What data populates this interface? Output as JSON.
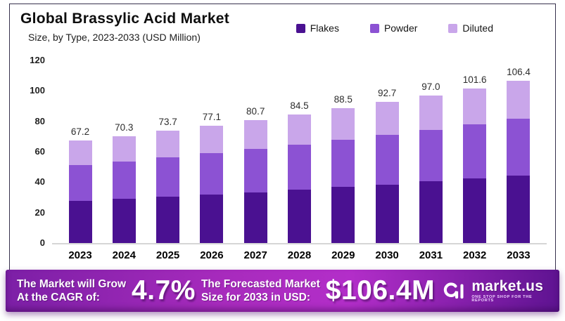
{
  "page": {
    "title": "Global Brassylic Acid Market",
    "subtitle": "Size, by Type, 2023-2033 (USD Million)"
  },
  "legend": [
    {
      "label": "Flakes",
      "color": "#4a1191"
    },
    {
      "label": "Powder",
      "color": "#8c52d3"
    },
    {
      "label": "Diluted",
      "color": "#c9a6ea"
    }
  ],
  "chart_data": {
    "type": "bar",
    "stacked": true,
    "title": "Global Brassylic Acid Market",
    "subtitle": "Size, by Type, 2023-2033 (USD Million)",
    "xlabel": "",
    "ylabel": "",
    "ylim": [
      0,
      120
    ],
    "yticks": [
      0,
      20,
      40,
      60,
      80,
      100,
      120
    ],
    "grid": false,
    "legend_position": "top-right",
    "categories": [
      "2023",
      "2024",
      "2025",
      "2026",
      "2027",
      "2028",
      "2029",
      "2030",
      "2031",
      "2032",
      "2033"
    ],
    "series": [
      {
        "name": "Flakes",
        "color": "#4a1191",
        "values": [
          27.5,
          28.9,
          30.3,
          31.8,
          33.4,
          35.0,
          36.7,
          38.5,
          40.4,
          42.4,
          44.5
        ]
      },
      {
        "name": "Powder",
        "color": "#8c52d3",
        "values": [
          23.6,
          24.7,
          25.9,
          27.1,
          28.4,
          29.7,
          31.1,
          32.6,
          34.1,
          35.7,
          37.4
        ]
      },
      {
        "name": "Diluted",
        "color": "#c9a6ea",
        "values": [
          16.1,
          16.7,
          17.5,
          18.2,
          18.9,
          19.8,
          20.7,
          21.6,
          22.5,
          23.5,
          24.5
        ]
      }
    ],
    "totals": [
      67.2,
      70.3,
      73.7,
      77.1,
      80.7,
      84.5,
      88.5,
      92.7,
      97.0,
      101.6,
      106.4
    ],
    "total_labels": [
      "67.2",
      "70.3",
      "73.7",
      "77.1",
      "80.7",
      "84.5",
      "88.5",
      "92.7",
      "97.0",
      "101.6",
      "106.4"
    ]
  },
  "banner": {
    "cagr_label_line1": "The Market will Grow",
    "cagr_label_line2": "At the CAGR of:",
    "cagr_value": "4.7%",
    "forecast_label_line1": "The Forecasted Market",
    "forecast_label_line2": "Size for 2033 in USD:",
    "forecast_value": "$106.4M",
    "logo_text": "market.us",
    "logo_tagline": "ONE STOP SHOP FOR THE REPORTS",
    "gradient": [
      "#7c1fa6",
      "#a82bbd",
      "#b32ec9",
      "#5e1391"
    ]
  }
}
